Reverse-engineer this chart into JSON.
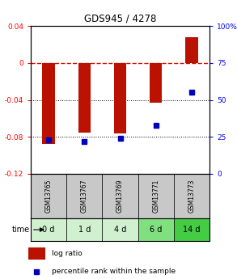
{
  "title": "GDS945 / 4278",
  "samples": [
    "GSM13765",
    "GSM13767",
    "GSM13769",
    "GSM13771",
    "GSM13773"
  ],
  "time_labels": [
    "0 d",
    "1 d",
    "4 d",
    "6 d",
    "14 d"
  ],
  "log_ratio": [
    -0.088,
    -0.075,
    -0.076,
    -0.043,
    0.028
  ],
  "percentile_rank": [
    23,
    22,
    24,
    33,
    55
  ],
  "ylim_left": [
    -0.12,
    0.04
  ],
  "ylim_right": [
    0,
    100
  ],
  "yticks_left": [
    0.04,
    0.0,
    -0.04,
    -0.08,
    -0.12
  ],
  "yticks_right": [
    100,
    75,
    50,
    25,
    0
  ],
  "bar_color": "#bb1100",
  "dot_color": "#0000bb",
  "dashed_color": "#cc1100",
  "sample_bg": "#c8c8c8",
  "time_bg_colors": [
    "#d0f0d0",
    "#d0f0d0",
    "#d0f0d0",
    "#80e080",
    "#44cc44"
  ],
  "legend_bar_color": "#bb1100",
  "legend_dot_color": "#0000bb"
}
